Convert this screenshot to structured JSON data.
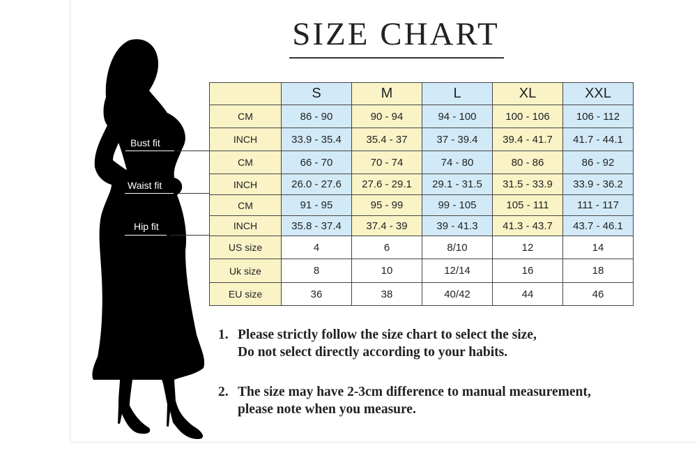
{
  "title": "SIZE CHART",
  "fit_labels": {
    "bust": "Bust fit",
    "waist": "Waist fit",
    "hip": "Hip fit"
  },
  "table": {
    "sizes": [
      "S",
      "M",
      "L",
      "XL",
      "XXL"
    ],
    "rows": [
      {
        "label": "CM",
        "values": [
          "86 - 90",
          "90 - 94",
          "94 - 100",
          "100 - 106",
          "106 - 112"
        ]
      },
      {
        "label": "INCH",
        "values": [
          "33.9 - 35.4",
          "35.4 - 37",
          "37 - 39.4",
          "39.4 - 41.7",
          "41.7 - 44.1"
        ]
      },
      {
        "label": "CM",
        "values": [
          "66 - 70",
          "70 - 74",
          "74 - 80",
          "80 - 86",
          "86 - 92"
        ]
      },
      {
        "label": "INCH",
        "values": [
          "26.0 - 27.6",
          "27.6 - 29.1",
          "29.1 - 31.5",
          "31.5 - 33.9",
          "33.9 - 36.2"
        ]
      },
      {
        "label": "CM",
        "values": [
          "91 - 95",
          "95 - 99",
          "99 - 105",
          "105 - 111",
          "111 - 117"
        ]
      },
      {
        "label": "INCH",
        "values": [
          "35.8 - 37.4",
          "37.4 - 39",
          "39 - 41.3",
          "41.3 - 43.7",
          "43.7 - 46.1"
        ]
      },
      {
        "label": "US size",
        "values": [
          "4",
          "6",
          "8/10",
          "12",
          "14"
        ]
      },
      {
        "label": "Uk size",
        "values": [
          "8",
          "10",
          "12/14",
          "16",
          "18"
        ]
      },
      {
        "label": "EU size",
        "values": [
          "36",
          "38",
          "40/42",
          "44",
          "46"
        ]
      }
    ]
  },
  "notes": [
    {
      "number": "1.",
      "lines": [
        "Please strictly follow the size chart to select the size,",
        "Do not select directly according to your habits."
      ]
    },
    {
      "number": "2.",
      "lines": [
        "The size may have 2-3cm difference  to manual measurement,",
        "please note when you measure."
      ]
    }
  ],
  "colors": {
    "yellow_cell": "#f9f3c6",
    "blue_cell": "#d2eaf7",
    "silhouette": "#000000"
  }
}
